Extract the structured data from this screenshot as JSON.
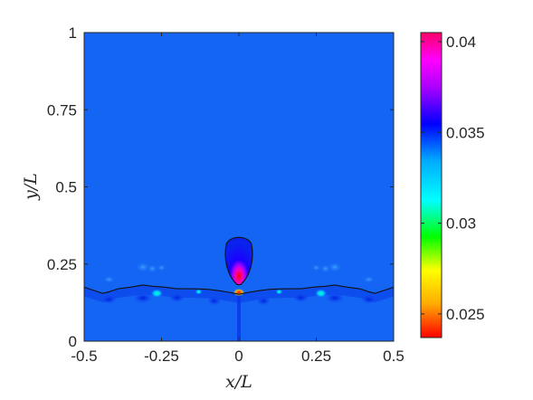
{
  "chart_data": {
    "type": "heatmap",
    "title": "",
    "xlabel": "x/L",
    "ylabel": "y/L",
    "xlim": [
      -0.5,
      0.5
    ],
    "ylim": [
      0,
      1
    ],
    "x_ticks": [
      "-0.5",
      "-0.25",
      "0",
      "0.25",
      "0.5"
    ],
    "x_tick_values": [
      -0.5,
      -0.25,
      0,
      0.25,
      0.5
    ],
    "y_ticks": [
      "0",
      "0.25",
      "0.5",
      "0.75",
      "1"
    ],
    "y_tick_values": [
      0,
      0.25,
      0.5,
      0.75,
      1
    ],
    "colorbar": {
      "range": [
        0.0237,
        0.0405
      ],
      "tick_values": [
        0.025,
        0.03,
        0.035,
        0.04
      ],
      "tick_labels": [
        "0.025",
        "0.03",
        "0.035",
        "0.04"
      ],
      "colormap": [
        "#ff0000",
        "#ffaa00",
        "#ffff00",
        "#00ff00",
        "#00ffff",
        "#00aaff",
        "#0000ff",
        "#aa00ff",
        "#ff00ff",
        "#ff0066"
      ]
    },
    "background_value": 0.0345,
    "interface_curve": [
      [
        -0.5,
        0.175
      ],
      [
        -0.47,
        0.165
      ],
      [
        -0.44,
        0.155
      ],
      [
        -0.42,
        0.16
      ],
      [
        -0.39,
        0.17
      ],
      [
        -0.35,
        0.175
      ],
      [
        -0.31,
        0.182
      ],
      [
        -0.28,
        0.178
      ],
      [
        -0.24,
        0.175
      ],
      [
        -0.2,
        0.17
      ],
      [
        -0.15,
        0.17
      ],
      [
        -0.1,
        0.168
      ],
      [
        -0.06,
        0.163
      ],
      [
        -0.03,
        0.158
      ],
      [
        0,
        0.152
      ],
      [
        0.03,
        0.158
      ],
      [
        0.06,
        0.163
      ],
      [
        0.1,
        0.168
      ],
      [
        0.15,
        0.17
      ],
      [
        0.2,
        0.17
      ],
      [
        0.24,
        0.175
      ],
      [
        0.28,
        0.178
      ],
      [
        0.31,
        0.182
      ],
      [
        0.35,
        0.175
      ],
      [
        0.39,
        0.17
      ],
      [
        0.42,
        0.16
      ],
      [
        0.44,
        0.155
      ],
      [
        0.47,
        0.165
      ],
      [
        0.5,
        0.175
      ]
    ],
    "droplet": {
      "center_x": 0,
      "bottom_y": 0.183,
      "top_y": 0.34,
      "half_width": 0.047
    }
  }
}
